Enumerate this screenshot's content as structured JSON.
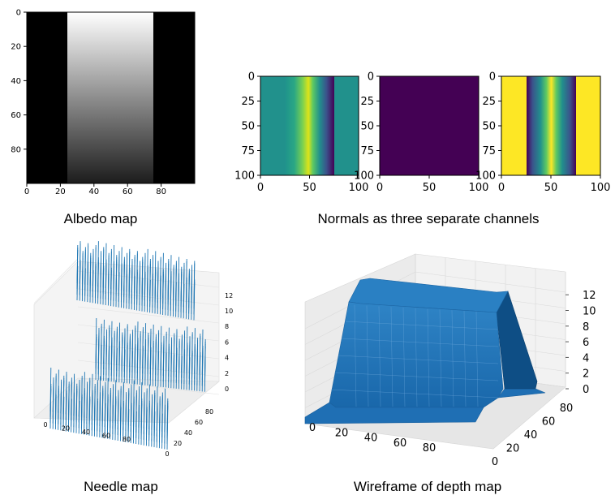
{
  "captions": {
    "albedo": "Albedo map",
    "normals": "Normals as three separate channels",
    "needle": "Needle map",
    "wireframe": "Wireframe of depth map"
  },
  "colors": {
    "needle_blue": "#1f77b4",
    "surface_blue": "#1f6fb4",
    "viridis_teal": "#21918c",
    "viridis_purple": "#440154",
    "viridis_yellow": "#fde725"
  },
  "chart_data": [
    {
      "type": "heatmap",
      "name": "albedo",
      "colormap": "gray",
      "description_of_values": "0 outside columns 25-75; inside, intensity decreases from 1 at top row to about 0.1 at bottom row",
      "x_ticks": [
        "0",
        "20",
        "40",
        "60",
        "80"
      ],
      "y_ticks": [
        "0",
        "20",
        "40",
        "60",
        "80"
      ],
      "xlim": [
        0,
        100
      ],
      "ylim": [
        100,
        0
      ],
      "band": [
        25,
        75
      ],
      "value_top": 1.0,
      "value_bottom": 0.1
    },
    {
      "type": "heatmap",
      "name": "normal-channel-x",
      "colormap": "viridis",
      "x_ticks": [
        "0",
        "50",
        "100"
      ],
      "y_ticks": [
        "0",
        "25",
        "50",
        "75",
        "100"
      ],
      "band": [
        25,
        75
      ],
      "outside_value": 0.5,
      "inside_gradient": [
        0.45,
        1.0,
        0.0
      ]
    },
    {
      "type": "heatmap",
      "name": "normal-channel-y",
      "colormap": "viridis",
      "x_ticks": [
        "0",
        "50",
        "100"
      ],
      "y_ticks": [
        "0",
        "25",
        "50",
        "75",
        "100"
      ],
      "uniform_value": 0.0
    },
    {
      "type": "heatmap",
      "name": "normal-channel-z",
      "colormap": "viridis",
      "x_ticks": [
        "0",
        "50",
        "100"
      ],
      "y_ticks": [
        "0",
        "25",
        "50",
        "75",
        "100"
      ],
      "band": [
        25,
        75
      ],
      "outside_value": 1.0,
      "inside_gradient": [
        0.0,
        1.0,
        0.0
      ]
    },
    {
      "type": "scatter",
      "name": "needle-map",
      "mode": "3d-quiver",
      "x_ticks": [
        "0",
        "20",
        "40",
        "60",
        "80"
      ],
      "y_ticks": [
        "0",
        "20",
        "40",
        "60",
        "80"
      ],
      "z_ticks": [
        "0",
        "2",
        "4",
        "6",
        "8",
        "10",
        "12"
      ]
    },
    {
      "type": "area",
      "name": "depth-surface",
      "mode": "3d-surface",
      "x_ticks": [
        "0",
        "20",
        "40",
        "60",
        "80"
      ],
      "y_ticks": [
        "0",
        "20",
        "40",
        "60",
        "80"
      ],
      "z_ticks": [
        "0",
        "2",
        "4",
        "6",
        "8",
        "10",
        "12"
      ],
      "zlim": [
        0,
        13
      ],
      "plateau_height": 12.5
    }
  ]
}
